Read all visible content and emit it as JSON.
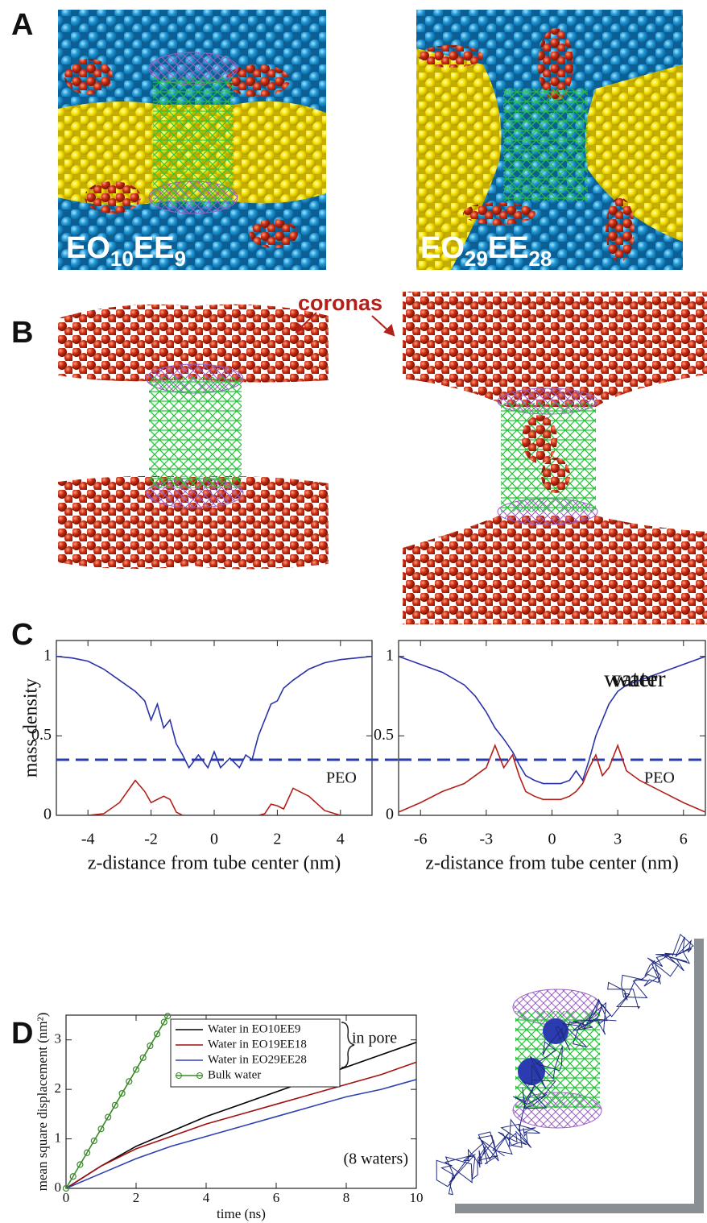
{
  "panels": {
    "A": {
      "label": "A",
      "captions": [
        [
          "EO",
          "10",
          "EE",
          "9"
        ],
        [
          "EO",
          "29",
          "EE",
          "28"
        ]
      ]
    },
    "B": {
      "label": "B",
      "annotation": "coronas"
    },
    "C": {
      "label": "C"
    },
    "D": {
      "label": "D"
    }
  },
  "chart_data": [
    {
      "type": "line",
      "ylabel": "mass density",
      "xlabel": "z-distance from tube center (nm)",
      "xlim": [
        -5,
        5
      ],
      "xticks": [
        -4,
        -2,
        0,
        2,
        4
      ],
      "ylim": [
        0,
        1.1
      ],
      "yticks": [
        0,
        0.5,
        1
      ],
      "x": [
        -5,
        -4.5,
        -4,
        -3.5,
        -3,
        -2.5,
        -2.2,
        -2,
        -1.8,
        -1.6,
        -1.4,
        -1.2,
        -1,
        -0.8,
        -0.5,
        -0.2,
        0,
        0.2,
        0.5,
        0.8,
        1,
        1.2,
        1.4,
        1.6,
        1.8,
        2,
        2.2,
        2.5,
        3,
        3.5,
        4,
        4.5,
        5
      ],
      "series": [
        {
          "name": "water",
          "color": "#2a32a8",
          "values": [
            1,
            0.99,
            0.97,
            0.92,
            0.85,
            0.78,
            0.72,
            0.6,
            0.7,
            0.55,
            0.6,
            0.45,
            0.38,
            0.3,
            0.38,
            0.3,
            0.4,
            0.3,
            0.36,
            0.3,
            0.38,
            0.35,
            0.5,
            0.6,
            0.7,
            0.72,
            0.8,
            0.85,
            0.92,
            0.96,
            0.98,
            0.99,
            1
          ]
        },
        {
          "name": "PEO",
          "color": "#b3201a",
          "values": [
            0,
            0,
            0,
            0.01,
            0.08,
            0.22,
            0.15,
            0.08,
            0.1,
            0.12,
            0.1,
            0.02,
            0,
            0,
            0,
            0,
            0,
            0,
            0,
            0,
            0,
            0,
            0,
            0.01,
            0.07,
            0.06,
            0.04,
            0.17,
            0.12,
            0.03,
            0,
            0,
            0
          ]
        }
      ],
      "hline": {
        "value": 0.35,
        "color": "#2a3cb0"
      }
    },
    {
      "type": "line",
      "xlabel": "z-distance from tube center (nm)",
      "xlim": [
        -7,
        7
      ],
      "xticks": [
        -6,
        -3,
        0,
        3,
        6
      ],
      "ylim": [
        0,
        1.1
      ],
      "yticks": [
        0,
        0.5,
        1
      ],
      "x": [
        -7,
        -6,
        -5,
        -4,
        -3.5,
        -3,
        -2.6,
        -2.2,
        -1.8,
        -1.5,
        -1.2,
        -0.8,
        -0.4,
        0,
        0.4,
        0.8,
        1.1,
        1.4,
        1.7,
        2,
        2.3,
        2.6,
        3,
        3.4,
        4,
        5,
        6,
        7
      ],
      "series": [
        {
          "name": "water",
          "color": "#2a32a8",
          "values": [
            1,
            0.95,
            0.9,
            0.82,
            0.75,
            0.65,
            0.55,
            0.48,
            0.4,
            0.32,
            0.25,
            0.22,
            0.2,
            0.2,
            0.2,
            0.22,
            0.28,
            0.22,
            0.35,
            0.5,
            0.6,
            0.7,
            0.78,
            0.82,
            0.85,
            0.9,
            0.95,
            1
          ]
        },
        {
          "name": "PEO",
          "color": "#b3201a",
          "values": [
            0.02,
            0.08,
            0.15,
            0.2,
            0.25,
            0.3,
            0.44,
            0.3,
            0.38,
            0.25,
            0.15,
            0.12,
            0.1,
            0.1,
            0.1,
            0.12,
            0.15,
            0.2,
            0.3,
            0.38,
            0.25,
            0.3,
            0.44,
            0.28,
            0.22,
            0.15,
            0.08,
            0.02
          ]
        }
      ],
      "hline": {
        "value": 0.35,
        "color": "#2a3cb0"
      }
    },
    {
      "type": "line",
      "ylabel": "mean square displacement (nm²)",
      "xlabel": "time (ns)",
      "xlim": [
        0,
        10
      ],
      "xticks": [
        0,
        2,
        4,
        6,
        8,
        10
      ],
      "ylim": [
        0,
        3.5
      ],
      "yticks": [
        0,
        1,
        2,
        3
      ],
      "legend": "top",
      "series": [
        {
          "name": "Water in EO10EE9",
          "color": "#000000",
          "x": [
            0,
            1,
            2,
            3,
            4,
            5,
            6,
            7,
            8,
            9,
            10
          ],
          "values": [
            0,
            0.45,
            0.85,
            1.15,
            1.45,
            1.7,
            1.95,
            2.2,
            2.45,
            2.7,
            2.95
          ]
        },
        {
          "name": "Water in EO19EE18",
          "color": "#a01010",
          "x": [
            0,
            1,
            2,
            3,
            4,
            5,
            6,
            7,
            8,
            9,
            10
          ],
          "values": [
            0,
            0.45,
            0.8,
            1.05,
            1.3,
            1.5,
            1.7,
            1.9,
            2.1,
            2.3,
            2.55
          ]
        },
        {
          "name": "Water in EO29EE28",
          "color": "#3040b0",
          "x": [
            0,
            1,
            2,
            3,
            4,
            5,
            6,
            7,
            8,
            9,
            10
          ],
          "values": [
            0,
            0.3,
            0.6,
            0.85,
            1.05,
            1.25,
            1.45,
            1.65,
            1.85,
            2.0,
            2.2
          ]
        },
        {
          "name": "Bulk water",
          "color": "#3a8a2a",
          "marker": "circle",
          "x": [
            0,
            0.2,
            0.4,
            0.6,
            0.8,
            1,
            1.2,
            1.4,
            1.6,
            1.8,
            2,
            2.2,
            2.4,
            2.6,
            2.8,
            2.9
          ],
          "values": [
            0,
            0.24,
            0.48,
            0.72,
            0.96,
            1.2,
            1.44,
            1.68,
            1.92,
            2.16,
            2.4,
            2.64,
            2.88,
            3.12,
            3.36,
            3.48
          ]
        }
      ],
      "annotations": [
        "in pore",
        "(8 waters)"
      ]
    }
  ]
}
